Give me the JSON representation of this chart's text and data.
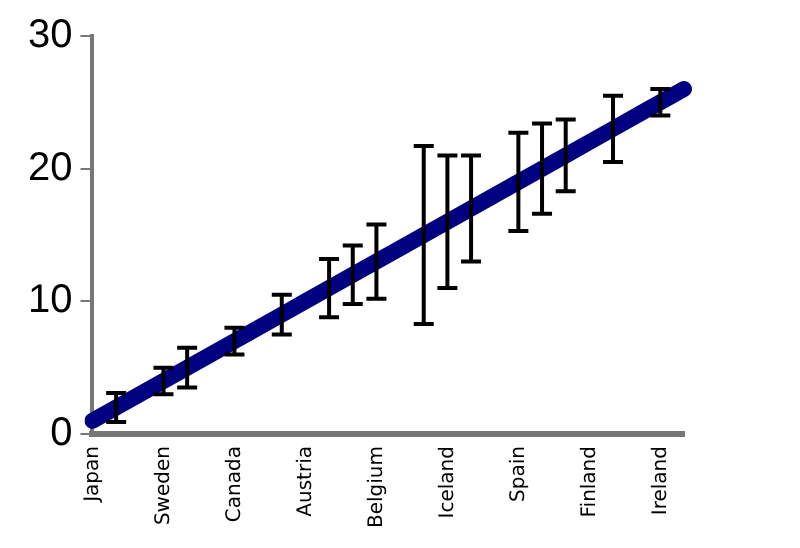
{
  "chart_data": {
    "type": "line",
    "categories": [
      "Japan",
      null,
      null,
      "Sweden",
      null,
      null,
      "Canada",
      null,
      null,
      "Austria",
      null,
      null,
      "Belgium",
      null,
      null,
      "Iceland",
      null,
      null,
      "Spain",
      null,
      null,
      "Finland",
      null,
      null,
      "Ireland",
      null
    ],
    "series": [
      {
        "color": "#000080",
        "values": [
          1,
          2,
          3,
          4,
          5,
          6,
          7,
          8,
          9,
          10,
          11,
          12,
          13,
          14,
          15,
          16,
          17,
          18,
          19,
          20,
          21,
          22,
          23,
          24,
          25,
          26
        ],
        "errors": [
          null,
          1.1,
          null,
          1,
          1.5,
          null,
          1,
          null,
          1.5,
          null,
          2.2,
          2.2,
          2.8,
          null,
          6.7,
          5,
          4,
          null,
          3.7,
          3.4,
          2.7,
          null,
          2.5,
          null,
          1,
          null
        ]
      }
    ],
    "ylim": [
      0,
      30
    ],
    "yticks": [
      0,
      10,
      20,
      30
    ],
    "grid": false,
    "legend": false,
    "marker": "none",
    "line_style": "solid"
  }
}
